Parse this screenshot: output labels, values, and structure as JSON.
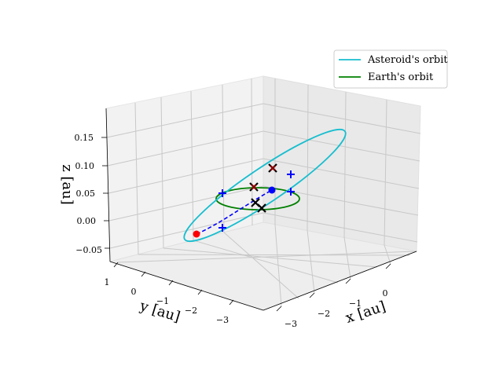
{
  "chart_data": {
    "type": "line",
    "projection": "3d",
    "title": "",
    "xlabel": "x [au]",
    "ylabel": "y [au]",
    "zlabel": "z [au]",
    "xlim": [
      -3.4,
      1.4
    ],
    "ylim": [
      -3.4,
      1.4
    ],
    "zlim": [
      -0.07,
      0.19
    ],
    "x_ticks": [
      "−3",
      "−2",
      "−1",
      "0"
    ],
    "y_ticks": [
      "1",
      "0",
      "−1",
      "−2",
      "−3"
    ],
    "z_ticks": [
      "−0.05",
      "0.00",
      "0.05",
      "0.10",
      "0.15"
    ],
    "grid": true,
    "legend_position": "upper right",
    "series": [
      {
        "name": "Asteroid's orbit",
        "kind": "orbit",
        "color": "#17becf",
        "semi_major_axis": 2.3,
        "center": [
          -1.4,
          -0.6,
          0.06
        ],
        "tilt_z_amplitude": 0.11,
        "eccentric": true
      },
      {
        "name": "Earth's orbit",
        "kind": "orbit",
        "color": "#008000",
        "radius": 1.0,
        "z": 0.0
      }
    ],
    "markers": {
      "blue_plus": {
        "color": "#0000ff",
        "symbol": "+"
      },
      "black_x": {
        "color": "#000000",
        "symbol": "x"
      },
      "red_x": {
        "color": "#8b0000",
        "symbol": "x"
      },
      "red_dot": {
        "color": "#ff0000",
        "symbol": "o"
      },
      "blue_dot": {
        "color": "#0000ff",
        "symbol": "o"
      }
    }
  }
}
